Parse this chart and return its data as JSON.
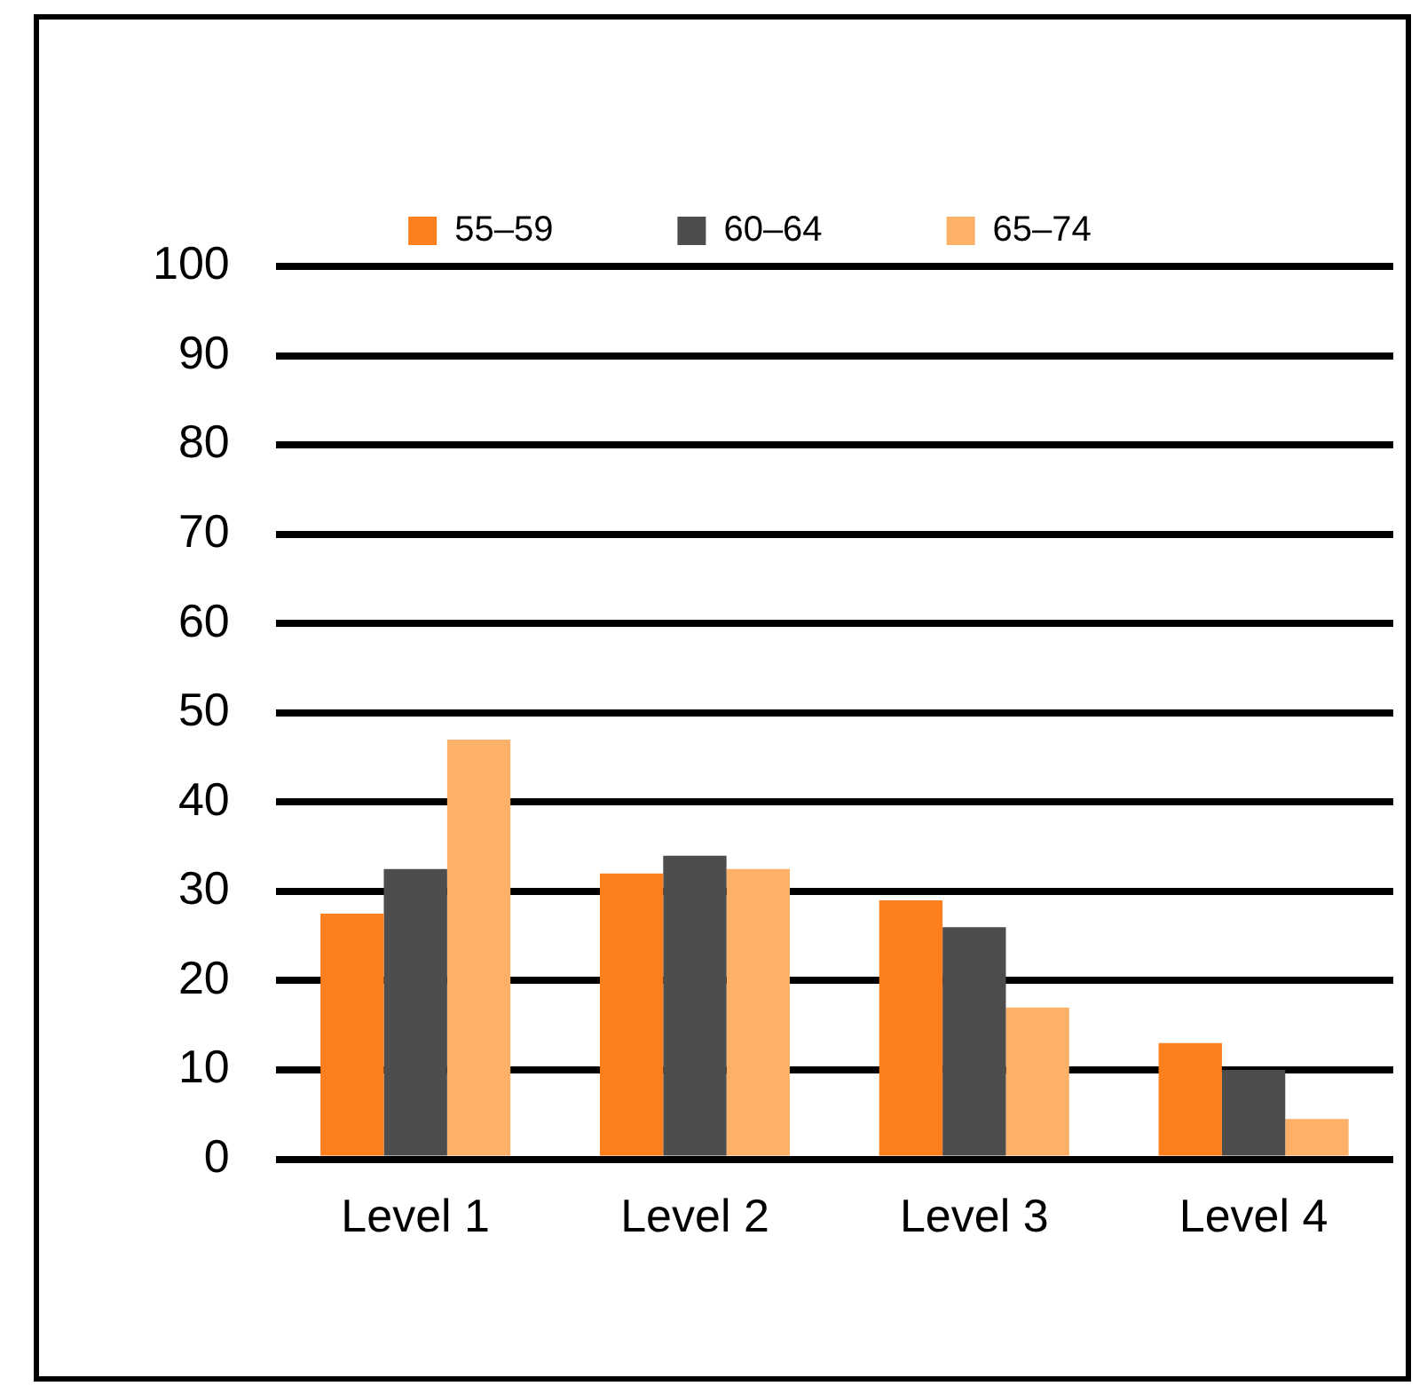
{
  "chart_data": {
    "type": "bar",
    "categories": [
      "Level 1",
      "Level 2",
      "Level 3",
      "Level 4"
    ],
    "series": [
      {
        "name": "55–59",
        "color": "#fd7f1e",
        "values": [
          27.5,
          32,
          29,
          13
        ]
      },
      {
        "name": "60–64",
        "color": "#4d4d4d",
        "values": [
          32.5,
          34,
          26,
          10
        ]
      },
      {
        "name": "65–74",
        "color": "#fdb067",
        "values": [
          47,
          32.5,
          17,
          4.5
        ]
      }
    ],
    "ylim": [
      0,
      100
    ],
    "yticks": [
      0,
      10,
      20,
      30,
      40,
      50,
      60,
      70,
      80,
      90,
      100
    ],
    "grid": "y",
    "legend": "top"
  }
}
